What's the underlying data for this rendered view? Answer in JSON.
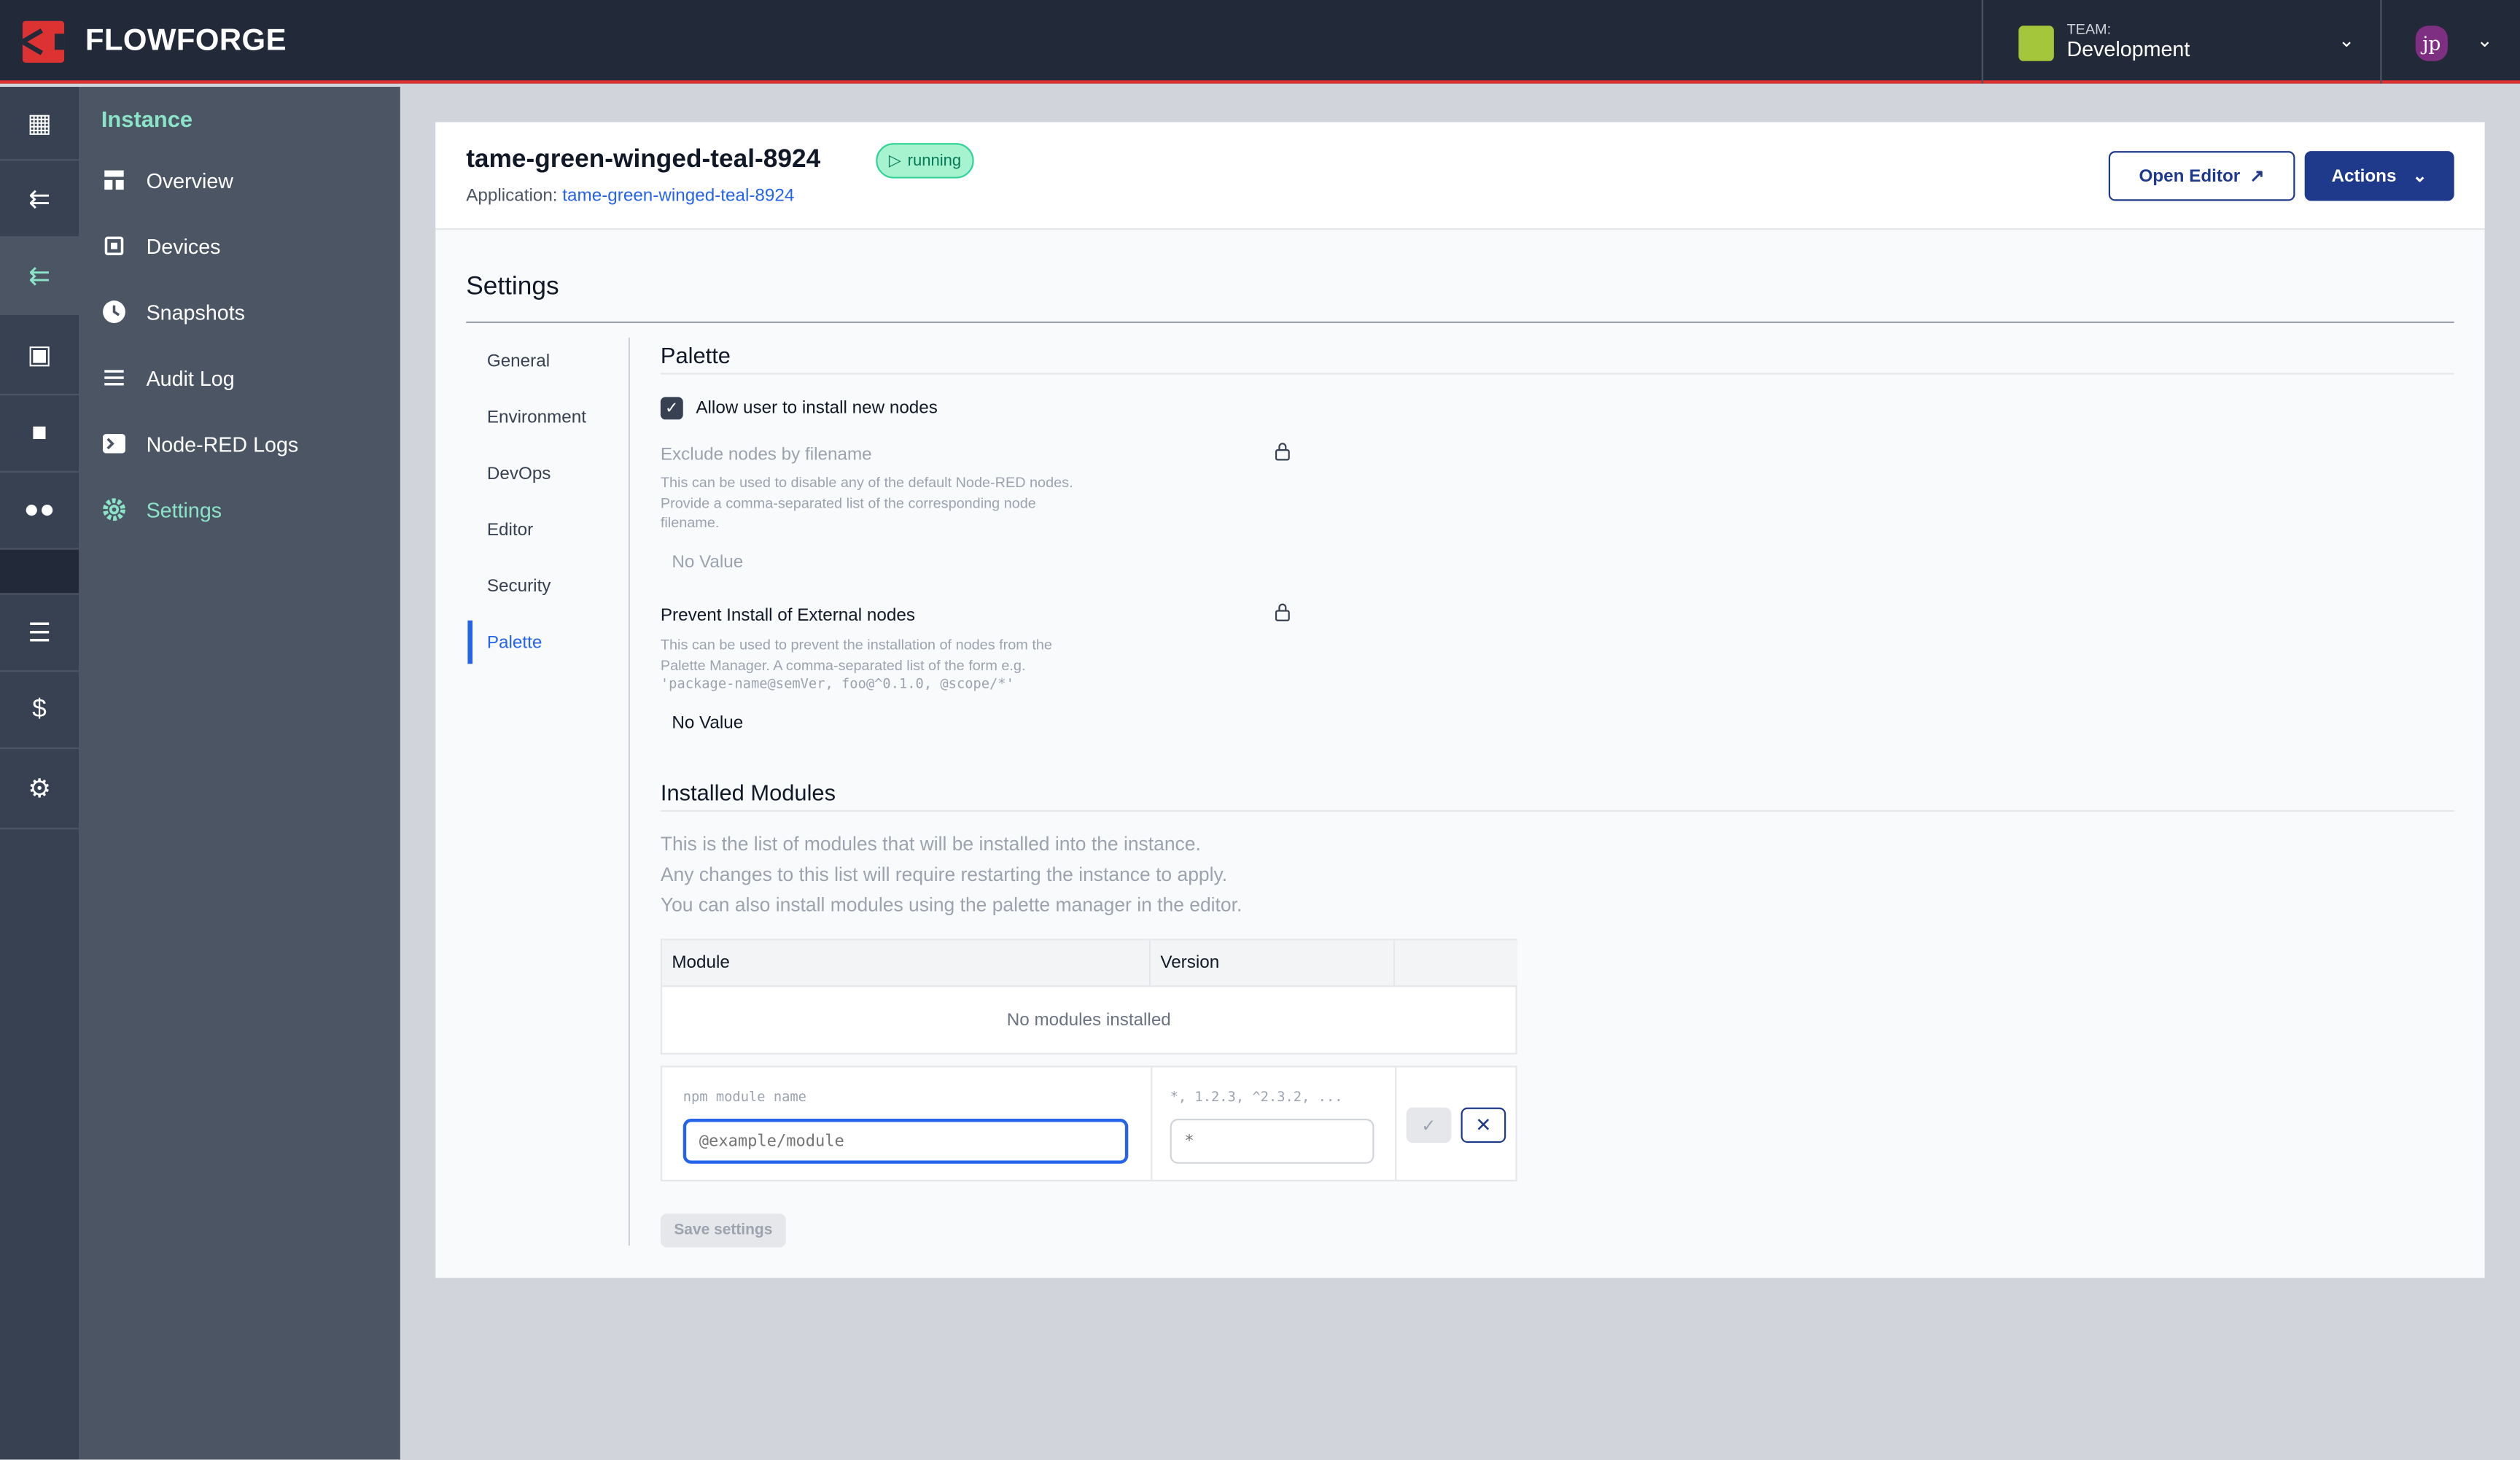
{
  "header": {
    "brand": "FLOWFORGE",
    "team_label": "TEAM:",
    "team_name": "Development",
    "user_initials": "jp",
    "accent": "#dc3232"
  },
  "sidebar": {
    "heading": "Instance",
    "items": [
      {
        "label": "Overview",
        "icon": "layout-icon"
      },
      {
        "label": "Devices",
        "icon": "chip-icon"
      },
      {
        "label": "Snapshots",
        "icon": "clock-icon"
      },
      {
        "label": "Audit Log",
        "icon": "list-icon"
      },
      {
        "label": "Node-RED Logs",
        "icon": "terminal-icon"
      },
      {
        "label": "Settings",
        "icon": "gear-icon",
        "active": true
      }
    ]
  },
  "instance": {
    "name": "tame-green-winged-teal-8924",
    "status": "running",
    "app_label": "Application:",
    "app_name": "tame-green-winged-teal-8924",
    "open_editor": "Open Editor",
    "actions": "Actions"
  },
  "settings": {
    "title": "Settings",
    "nav": [
      "General",
      "Environment",
      "DevOps",
      "Editor",
      "Security",
      "Palette"
    ],
    "active": "Palette"
  },
  "palette": {
    "title": "Palette",
    "allow_label": "Allow user to install new nodes",
    "allow_checked": true,
    "exclude": {
      "label": "Exclude nodes by filename",
      "desc1": "This can be used to disable any of the default Node-RED nodes.",
      "desc2": "Provide a comma-separated list of the corresponding node",
      "desc3": "filename.",
      "value": "No Value"
    },
    "prevent": {
      "label": "Prevent Install of External nodes",
      "desc1": "This can be used to prevent the installation of nodes from the",
      "desc2": "Palette Manager. A comma-separated list of the form e.g.",
      "desc3": "'package-name@semVer, foo@^0.1.0, @scope/*'",
      "value": "No Value"
    }
  },
  "modules": {
    "title": "Installed Modules",
    "p1": "This is the list of modules that will be installed into the instance.",
    "p2": "Any changes to this list will require restarting the instance to apply.",
    "p3": "You can also install modules using the palette manager in the editor.",
    "col_module": "Module",
    "col_version": "Version",
    "empty": "No modules installed",
    "name_label": "npm module name",
    "name_placeholder": "@example/module",
    "version_label": "*, 1.2.3, ^2.3.2, ...",
    "version_placeholder": "*",
    "save": "Save settings"
  }
}
